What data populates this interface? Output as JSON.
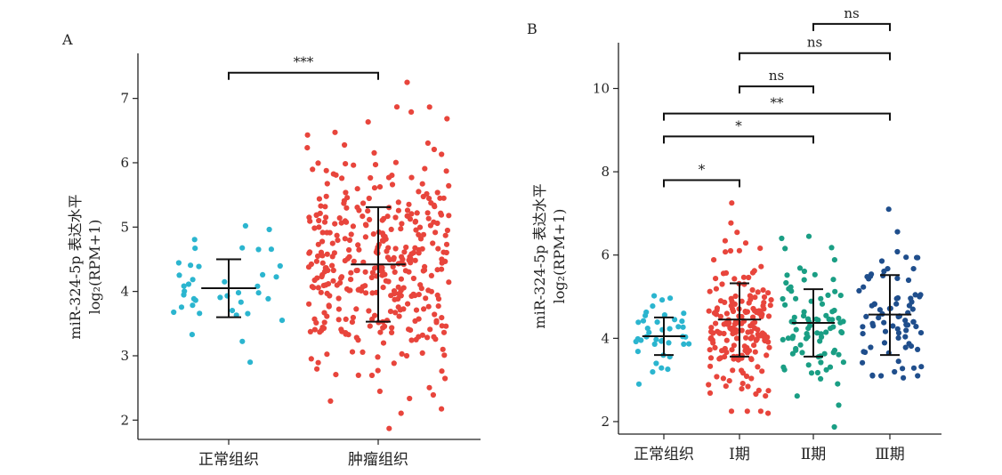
{
  "chart_data": [
    {
      "type": "scatter",
      "panel": "A",
      "ylabel_line1": "miR-324-5p 表达水平",
      "ylabel_line2": "log₂(RPM+1)",
      "ylim": [
        1.7,
        7.7
      ],
      "yticks": [
        2,
        3,
        4,
        5,
        6,
        7
      ],
      "grid": false,
      "categories": [
        "正常组织",
        "肿瘤组织"
      ],
      "groups": [
        {
          "name": "正常组织",
          "color": "#2bb5cf",
          "n": 40,
          "mean": 4.05,
          "sd_low": 3.6,
          "sd_high": 4.5,
          "min": 2.9,
          "max": 5.02
        },
        {
          "name": "肿瘤组织",
          "color": "#e8453c",
          "n": 380,
          "mean": 4.42,
          "sd_low": 3.53,
          "sd_high": 5.31,
          "min": 1.87,
          "max": 7.25
        }
      ],
      "comparisons": [
        {
          "from": 0,
          "to": 1,
          "label": "***",
          "y": 7.4
        }
      ]
    },
    {
      "type": "scatter",
      "panel": "B",
      "ylabel_line1": "miR-324-5p 表达水平",
      "ylabel_line2": "log₂(RPM+1)",
      "ylim": [
        1.7,
        11.1
      ],
      "yticks": [
        2,
        4,
        6,
        8,
        10
      ],
      "grid": false,
      "categories": [
        "正常组织",
        "Ⅰ期",
        "Ⅱ期",
        "Ⅲ期"
      ],
      "groups": [
        {
          "name": "正常组织",
          "color": "#2bb5cf",
          "n": 40,
          "mean": 4.05,
          "sd_low": 3.6,
          "sd_high": 4.5,
          "min": 2.9,
          "max": 5.02
        },
        {
          "name": "Ⅰ期",
          "color": "#e8453c",
          "n": 180,
          "mean": 4.45,
          "sd_low": 3.56,
          "sd_high": 5.32,
          "min": 2.2,
          "max": 7.25
        },
        {
          "name": "Ⅱ期",
          "color": "#1a9e84",
          "n": 85,
          "mean": 4.37,
          "sd_low": 3.56,
          "sd_high": 5.18,
          "min": 1.87,
          "max": 6.45
        },
        {
          "name": "Ⅲ期",
          "color": "#1f4e8c",
          "n": 80,
          "mean": 4.57,
          "sd_low": 3.6,
          "sd_high": 5.52,
          "min": 3.05,
          "max": 7.1
        }
      ],
      "comparisons": [
        {
          "from": 0,
          "to": 1,
          "label": "*",
          "y": 7.8
        },
        {
          "from": 0,
          "to": 2,
          "label": "*",
          "y": 8.85
        },
        {
          "from": 0,
          "to": 3,
          "label": "**",
          "y": 9.4
        },
        {
          "from": 1,
          "to": 2,
          "label": "ns",
          "y": 10.05
        },
        {
          "from": 1,
          "to": 3,
          "label": "ns",
          "y": 10.85
        },
        {
          "from": 2,
          "to": 3,
          "label": "ns",
          "y": 11.55
        }
      ]
    }
  ]
}
